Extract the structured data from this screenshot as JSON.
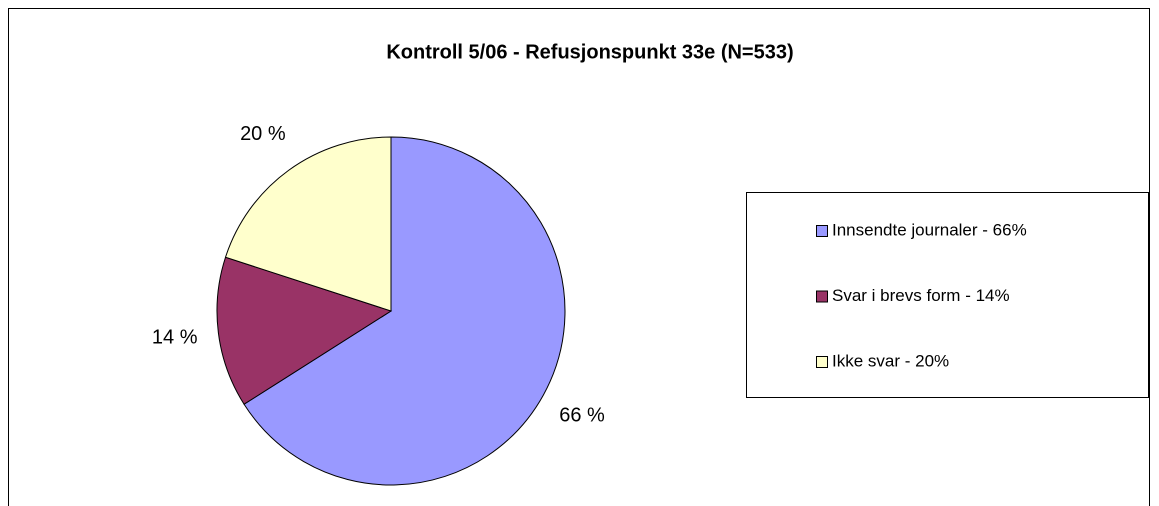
{
  "chart_data": {
    "type": "pie",
    "title": "Kontroll 5/06 - Refusjonspunkt 33e (N=533)",
    "categories": [
      "Innsendte journaler - 66%",
      "Svar i brevs form - 14%",
      "Ikke svar - 20%"
    ],
    "values": [
      66,
      14,
      20
    ],
    "value_labels": [
      "66 %",
      "14 %",
      "20 %"
    ],
    "colors": [
      "#9999ff",
      "#993366",
      "#ffffcc"
    ],
    "legend": "right"
  }
}
